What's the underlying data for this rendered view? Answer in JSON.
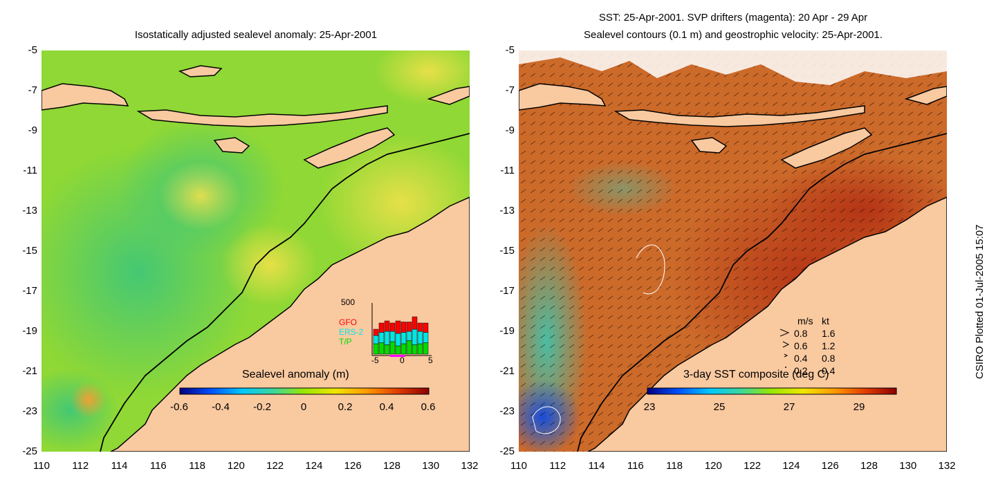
{
  "left_panel": {
    "title": "Isostatically adjusted sealevel anomaly: 25-Apr-2001",
    "colorbar_label": "Sealevel anomaly (m)",
    "colorbar_ticks": [
      "-0.6",
      "-0.4",
      "-0.2",
      "0",
      "0.2",
      "0.4",
      "0.6"
    ],
    "colorbar_colors": [
      "#00007f",
      "#0050ff",
      "#00c8ff",
      "#3cd79b",
      "#9be600",
      "#f0e600",
      "#ff9b00",
      "#e13c00",
      "#8c0000"
    ],
    "inset": {
      "ymax_label": "500",
      "x_ticks": [
        "-5",
        "0",
        "5"
      ],
      "legend": [
        {
          "label": "GFO",
          "color": "#ff0000"
        },
        {
          "label": "ERS-2",
          "color": "#00e6e6"
        },
        {
          "label": "T/P",
          "color": "#00dc00"
        }
      ],
      "bars": [
        {
          "tp": 0.1,
          "ers": 0.08,
          "gfo": 0.06
        },
        {
          "tp": 0.11,
          "ers": 0.1,
          "gfo": 0.09
        },
        {
          "tp": 0.09,
          "ers": 0.13,
          "gfo": 0.1
        },
        {
          "tp": 0.12,
          "ers": 0.1,
          "gfo": 0.08
        },
        {
          "tp": 0.08,
          "ers": 0.12,
          "gfo": 0.12
        },
        {
          "tp": 0.1,
          "ers": 0.11,
          "gfo": 0.1
        },
        {
          "tp": 0.13,
          "ers": 0.09,
          "gfo": 0.09
        },
        {
          "tp": 0.09,
          "ers": 0.15,
          "gfo": 0.12
        },
        {
          "tp": 0.1,
          "ers": 0.12,
          "gfo": 0.08
        },
        {
          "tp": 0.11,
          "ers": 0.1,
          "gfo": 0.09
        }
      ]
    }
  },
  "right_panel": {
    "title_line1": "SST: 25-Apr-2001. SVP drifters (magenta): 20 Apr - 29 Apr",
    "title_line2": "Sealevel contours (0.1 m) and geostrophic velocity: 25-Apr-2001.",
    "colorbar_label": "3-day SST composite (deg C)",
    "colorbar_ticks": [
      "23",
      "25",
      "27",
      "29"
    ],
    "colorbar_colors": [
      "#00007f",
      "#0050ff",
      "#00c8ff",
      "#3cd79b",
      "#9be600",
      "#f0e600",
      "#ff9b00",
      "#e13c00",
      "#8c0000"
    ],
    "speed_legend": {
      "header": [
        "m/s",
        "kt"
      ],
      "rows": [
        [
          "0.8",
          "1.6"
        ],
        [
          "0.6",
          "1.2"
        ],
        [
          "0.4",
          "0.8"
        ],
        [
          "0.2",
          "0.4"
        ]
      ]
    }
  },
  "axes": {
    "y_ticks": [
      "-5",
      "-7",
      "-9",
      "-11",
      "-13",
      "-15",
      "-17",
      "-19",
      "-21",
      "-23",
      "-25"
    ],
    "x_ticks": [
      "110",
      "112",
      "114",
      "116",
      "118",
      "120",
      "122",
      "124",
      "126",
      "128",
      "130",
      "132"
    ],
    "lon_range": [
      110,
      132
    ],
    "lat_range": [
      -25,
      -5
    ]
  },
  "credit": "CSIRO Plotted 01-Jul-2005 15:07",
  "colors": {
    "land": "#f9c9a0",
    "sla_ocean": "#7ed321",
    "sst_ocean": "#c8501e"
  }
}
